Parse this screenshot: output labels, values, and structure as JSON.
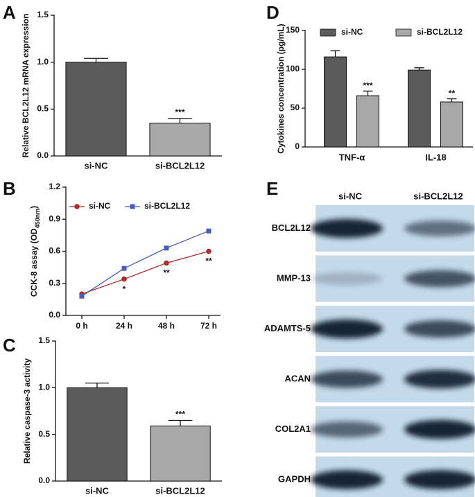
{
  "chart_data": [
    {
      "type": "bar",
      "panel": "A",
      "ylabel": "Relative BCL2L12 mRNA expression",
      "categories": [
        "si-NC",
        "si-BCL2L12"
      ],
      "values": [
        1.0,
        0.35
      ],
      "errors": [
        0.04,
        0.05
      ],
      "colors": [
        "#5b5b5b",
        "#a8a8a8"
      ],
      "annotations": [
        null,
        "***"
      ],
      "ylim": [
        0,
        1.5
      ],
      "yticks": [
        {
          "value": 0,
          "label": "0.0"
        },
        0.5,
        {
          "value": 1,
          "label": "1.0"
        },
        1.5
      ]
    },
    {
      "type": "line",
      "panel": "B",
      "ylabel_parts": [
        "CCK-8 assay (OD",
        "450nm",
        ")"
      ],
      "categories": [
        "0 h",
        "24 h",
        "48 h",
        "72 h"
      ],
      "series": [
        {
          "name": "si-NC",
          "color": "#b22a2a",
          "marker": "circle",
          "values": [
            0.2,
            0.34,
            0.49,
            0.6
          ],
          "annotations": [
            null,
            "*",
            "**",
            "**"
          ]
        },
        {
          "name": "si-BCL2L12",
          "color": "#4a5cc0",
          "marker": "square",
          "values": [
            0.18,
            0.44,
            0.63,
            0.79
          ]
        }
      ],
      "ylim": [
        0,
        1.2
      ],
      "yticks": [
        {
          "value": 0,
          "label": "0.0"
        },
        0.3,
        0.6,
        0.9,
        1.2
      ]
    },
    {
      "type": "bar",
      "panel": "C",
      "ylabel": "Relative caspase-3 activity",
      "categories": [
        "si-NC",
        "si-BCL2L12"
      ],
      "values": [
        1.0,
        0.59
      ],
      "errors": [
        0.05,
        0.06
      ],
      "colors": [
        "#5b5b5b",
        "#a8a8a8"
      ],
      "annotations": [
        null,
        "***"
      ],
      "ylim": [
        0,
        1.5
      ],
      "yticks": [
        {
          "value": 0,
          "label": "0.0"
        },
        0.5,
        {
          "value": 1,
          "label": "1.0"
        },
        1.5
      ]
    },
    {
      "type": "grouped_bar",
      "panel": "D",
      "ylabel": "Cytokines concentration (pg/mL)",
      "categories": [
        "TNF-α",
        "IL-18"
      ],
      "series": [
        {
          "name": "si-NC",
          "color": "#5b5b5b",
          "values": [
            116,
            99
          ],
          "errors": [
            8,
            3
          ]
        },
        {
          "name": "si-BCL2L12",
          "color": "#a8a8a8",
          "values": [
            66,
            58
          ],
          "errors": [
            6,
            4
          ],
          "annotations": [
            "***",
            "**"
          ]
        }
      ],
      "ylim": [
        0,
        150
      ],
      "yticks": [
        0,
        50,
        100,
        150
      ]
    }
  ],
  "blot": {
    "panel": "E",
    "columns": [
      "si-NC",
      "si-BCL2L12"
    ],
    "rows": [
      "BCL2L12",
      "MMP-13",
      "ADAMTS-5",
      "ACAN",
      "COL2A1",
      "GAPDH"
    ]
  }
}
